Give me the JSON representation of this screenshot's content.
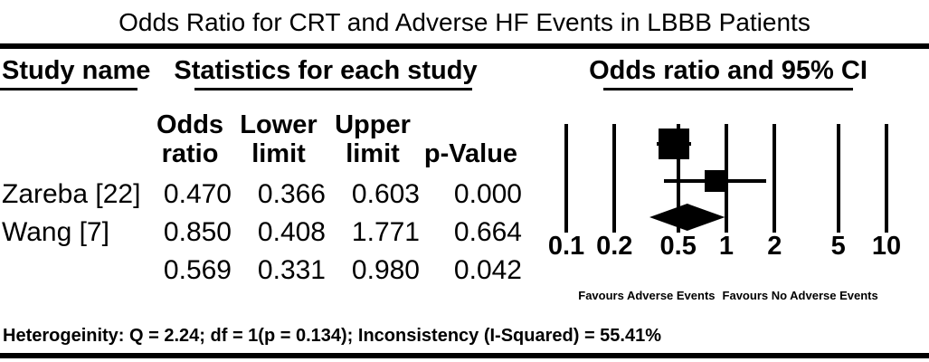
{
  "title": "Odds Ratio for CRT and Adverse HF Events in LBBB Patients",
  "table": {
    "header_study": "Study name",
    "header_statistics": "Statistics for each study",
    "subheaders": {
      "odds_line1": "Odds",
      "odds_line2": "ratio",
      "lower_line1": "Lower",
      "lower_line2": "limit",
      "upper_line1": "Upper",
      "upper_line2": "limit",
      "p_value": "p-Value"
    },
    "rows": [
      {
        "name": "Zareba [22]",
        "odds_ratio": "0.470",
        "lower": "0.366",
        "upper": "0.603",
        "p": "0.000"
      },
      {
        "name": "Wang [7]",
        "odds_ratio": "0.850",
        "lower": "0.408",
        "upper": "1.771",
        "p": "0.664"
      },
      {
        "name": "",
        "odds_ratio": "0.569",
        "lower": "0.331",
        "upper": "0.980",
        "p": "0.042"
      }
    ]
  },
  "plot": {
    "header": "Odds ratio and 95% CI",
    "favours_left": "Favours Adverse Events",
    "favours_right": "Favours No Adverse Events"
  },
  "footer": {
    "heterogeneity": "Heterogeinity: Q = 2.24; df = 1(p = 0.134); Inconsistency (I-Squared) = 55.41%"
  },
  "colors": {
    "ink": "#000000",
    "background": "#ffffff"
  },
  "chart_data": {
    "type": "forest",
    "title": "Odds Ratio for CRT and Adverse HF Events in LBBB Patients",
    "x_scale": "log10",
    "x_range": [
      0.1,
      10
    ],
    "x_ticks": [
      "0.1",
      "0.2",
      "0.5",
      "1",
      "2",
      "5",
      "10"
    ],
    "axis_label_left": "Favours Adverse Events",
    "axis_label_right": "Favours No Adverse Events",
    "studies": [
      {
        "name": "Zareba [22]",
        "odds_ratio": 0.47,
        "lower_limit": 0.366,
        "upper_limit": 0.603,
        "p_value": 0.0
      },
      {
        "name": "Wang [7]",
        "odds_ratio": 0.85,
        "lower_limit": 0.408,
        "upper_limit": 1.771,
        "p_value": 0.664
      }
    ],
    "combined": {
      "odds_ratio": 0.569,
      "lower_limit": 0.331,
      "upper_limit": 0.98,
      "p_value": 0.042
    },
    "heterogeneity": {
      "Q": 2.24,
      "df": 1,
      "p": 0.134,
      "I_squared_percent": 55.41
    }
  }
}
